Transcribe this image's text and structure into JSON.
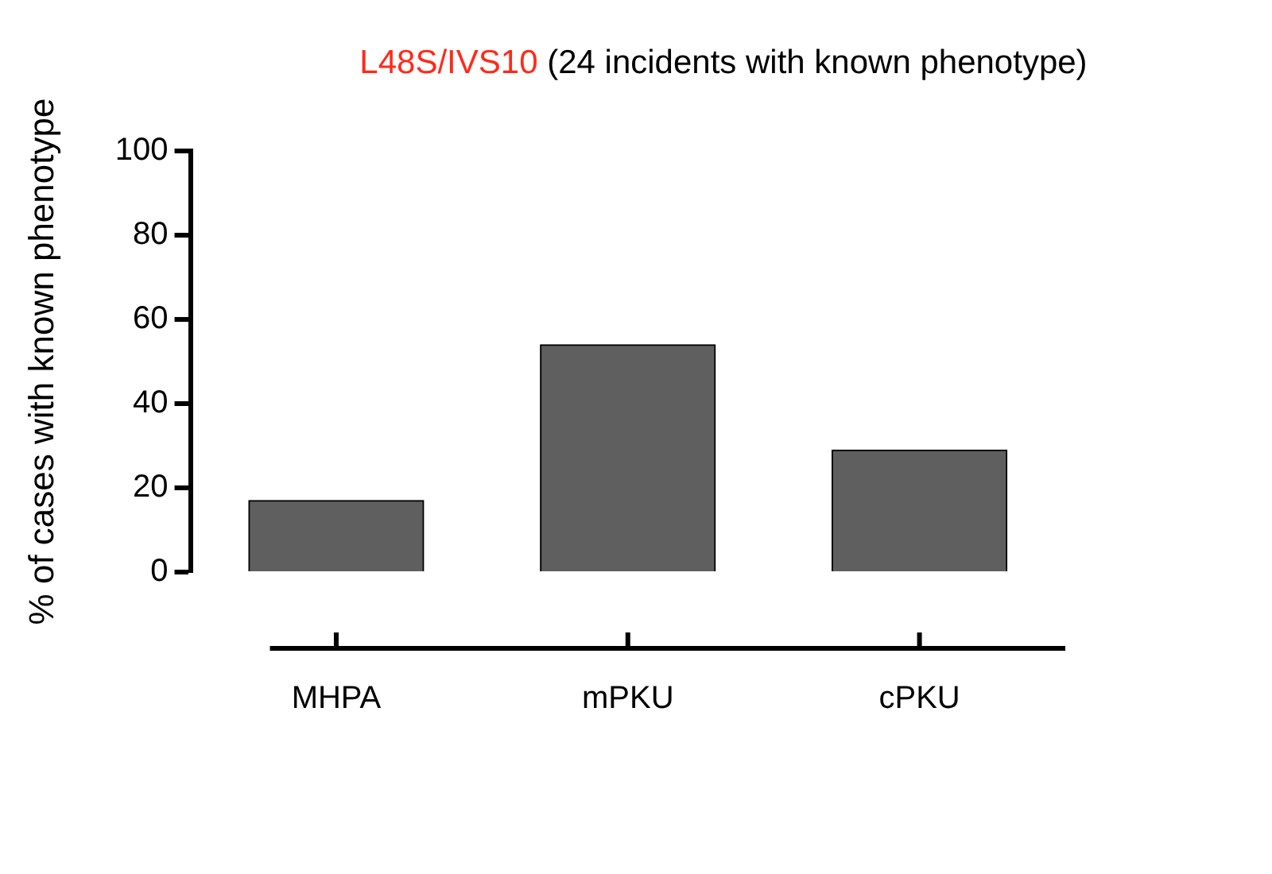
{
  "chart_data": {
    "type": "bar",
    "title": "L48S/IVS10 (24 incidents with known phenotype)",
    "ylabel": "% of cases with known phenotype",
    "categories": [
      "MHPA",
      "mPKU",
      "cPKU"
    ],
    "values": [
      17,
      54,
      29
    ],
    "color": "#5f5f5f",
    "ylim": [
      0,
      100
    ],
    "yticks": [
      0,
      20,
      40,
      60,
      80,
      100
    ],
    "grid": false,
    "legend": false
  }
}
